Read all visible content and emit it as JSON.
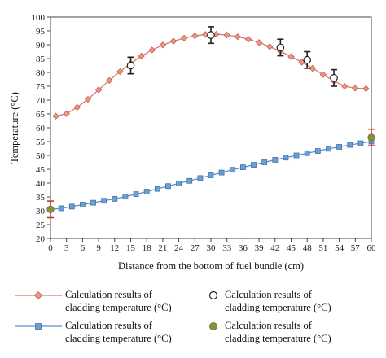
{
  "chart_data": {
    "type": "line",
    "xlabel": "Distance from the bottom of fuel bundle (cm)",
    "ylabel": "Temperature (°C)",
    "xlim": [
      0,
      60
    ],
    "ylim": [
      20,
      100
    ],
    "xticks": [
      0,
      3,
      6,
      9,
      12,
      15,
      18,
      21,
      24,
      27,
      30,
      33,
      36,
      39,
      42,
      45,
      48,
      51,
      54,
      57,
      60
    ],
    "yticks": [
      20,
      25,
      30,
      35,
      40,
      45,
      50,
      55,
      60,
      65,
      70,
      75,
      80,
      85,
      90,
      95,
      100
    ],
    "grid": false,
    "legend_position": "bottom",
    "series": [
      {
        "name": "Calculation results of cladding temperature (°C)",
        "style": "line-diamond",
        "color": "#d97a66",
        "x": [
          1,
          3,
          5,
          7,
          9,
          11,
          13,
          15,
          17,
          19,
          21,
          23,
          25,
          27,
          29,
          31,
          33,
          35,
          37,
          39,
          41,
          43,
          45,
          47,
          49,
          51,
          53,
          55,
          57,
          59
        ],
        "y": [
          64.2,
          65.1,
          67.4,
          70.3,
          73.7,
          77.1,
          80.3,
          83.3,
          85.9,
          88.1,
          89.9,
          91.3,
          92.4,
          93.2,
          93.7,
          93.8,
          93.5,
          92.9,
          92.0,
          90.8,
          89.3,
          87.6,
          85.7,
          83.7,
          81.5,
          79.2,
          76.9,
          75.0,
          74.3,
          74.1
        ]
      },
      {
        "name": "Calculation results of cladding temperature (°C)",
        "style": "line-square",
        "color": "#5b8fc7",
        "x": [
          0,
          2,
          4,
          6,
          8,
          10,
          12,
          14,
          16,
          18,
          20,
          22,
          24,
          26,
          28,
          30,
          32,
          34,
          36,
          38,
          40,
          42,
          44,
          46,
          48,
          50,
          52,
          54,
          56,
          58,
          60
        ],
        "y": [
          30.4,
          30.9,
          31.5,
          32.2,
          32.9,
          33.6,
          34.3,
          35.1,
          36.0,
          36.9,
          37.9,
          38.9,
          39.9,
          40.8,
          41.8,
          42.8,
          43.8,
          44.8,
          45.7,
          46.6,
          47.5,
          48.4,
          49.2,
          50.0,
          50.8,
          51.6,
          52.4,
          53.1,
          53.8,
          54.4,
          55.0
        ]
      },
      {
        "name": "Calculation results of cladding temperature (°C)",
        "style": "open-circle-errorbar",
        "color": "#222222",
        "x": [
          15,
          30,
          43,
          48,
          53
        ],
        "y": [
          82.5,
          93.5,
          89.0,
          84.5,
          78.0
        ],
        "err": [
          3.0,
          3.0,
          3.0,
          3.0,
          3.0
        ]
      },
      {
        "name": "Calculation results of cladding temperature (°C)",
        "style": "filled-circle-errorbar",
        "color": "#8a8f3a",
        "errcolor": "#c0392b",
        "x": [
          0,
          60
        ],
        "y": [
          30.5,
          56.5
        ],
        "err": [
          3.0,
          3.0
        ]
      }
    ]
  },
  "legend": {
    "items": [
      {
        "line1": "Calculation results of",
        "line2": "cladding temperature (°C)"
      },
      {
        "line1": "Calculation results of",
        "line2": "cladding temperature (°C)"
      },
      {
        "line1": "Calculation results of",
        "line2": "cladding temperature (°C)"
      },
      {
        "line1": "Calculation results of",
        "line2": "cladding temperature (°C)"
      }
    ]
  }
}
